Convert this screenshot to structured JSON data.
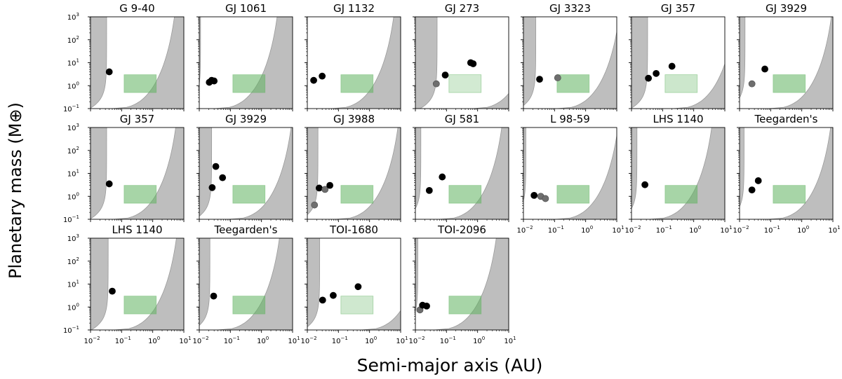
{
  "figure": {
    "ylabel": "Planetary mass (M⊕)",
    "xlabel": "Semi-major axis (AU)"
  },
  "colors": {
    "excluded_region": "#bebebe",
    "excluded_edge": "#9a9a9a",
    "habitable_zone": "#5fb35f",
    "planet_detected": "#000000",
    "planet_candidate": "#6e6e6e"
  },
  "chart_data": {
    "type": "scatter",
    "x_scale": "log",
    "y_scale": "log",
    "xlim": [
      0.01,
      10
    ],
    "ylim": [
      0.1,
      1000
    ],
    "x_tick_labels": [
      "10⁻²",
      "10⁻¹",
      "10⁰",
      "10¹"
    ],
    "y_tick_labels": [
      "10⁻¹",
      "10⁰",
      "10¹",
      "10²",
      "10³"
    ],
    "panels": [
      {
        "title": "G 9-40",
        "hz": [
          0.12,
          1.3
        ],
        "hz_opacity": 0.55,
        "excl_inner": 0.033,
        "excl_outer": 0.05,
        "points": [
          {
            "x": 0.04,
            "y": 4.0,
            "s": "d"
          }
        ]
      },
      {
        "title": "GJ 1061",
        "hz": [
          0.12,
          1.3
        ],
        "hz_opacity": 0.55,
        "excl_inner": 0.011,
        "excl_outer": 0.032,
        "points": [
          {
            "x": 0.021,
            "y": 1.4,
            "s": "d"
          },
          {
            "x": 0.025,
            "y": 1.7,
            "s": "d"
          },
          {
            "x": 0.03,
            "y": 1.6,
            "s": "d"
          }
        ]
      },
      {
        "title": "GJ 1132",
        "hz": [
          0.12,
          1.3
        ],
        "hz_opacity": 0.55,
        "excl_inner": 0.009,
        "excl_outer": 0.06,
        "points": [
          {
            "x": 0.016,
            "y": 1.7,
            "s": "d"
          },
          {
            "x": 0.03,
            "y": 2.6,
            "s": "d"
          }
        ]
      },
      {
        "title": "GJ 273",
        "hz": [
          0.12,
          1.3
        ],
        "hz_opacity": 0.28,
        "excl_inner": 0.05,
        "excl_outer": 0.7,
        "points": [
          {
            "x": 0.047,
            "y": 1.2,
            "s": "c"
          },
          {
            "x": 0.091,
            "y": 2.9,
            "s": "d"
          },
          {
            "x": 0.6,
            "y": 10.0,
            "s": "d"
          },
          {
            "x": 0.72,
            "y": 9.0,
            "s": "d"
          }
        ]
      },
      {
        "title": "GJ 3323",
        "hz": [
          0.12,
          1.3
        ],
        "hz_opacity": 0.55,
        "excl_inner": 0.025,
        "excl_outer": 0.12,
        "points": [
          {
            "x": 0.033,
            "y": 1.9,
            "s": "d"
          },
          {
            "x": 0.126,
            "y": 2.2,
            "s": "c"
          }
        ]
      },
      {
        "title": "GJ 357",
        "hz": [
          0.12,
          1.3
        ],
        "hz_opacity": 0.32,
        "excl_inner": 0.033,
        "excl_outer": 0.22,
        "points": [
          {
            "x": 0.035,
            "y": 2.1,
            "s": "d"
          },
          {
            "x": 0.062,
            "y": 3.4,
            "s": "d"
          },
          {
            "x": 0.2,
            "y": 7.0,
            "s": "d"
          }
        ]
      },
      {
        "title": "GJ 3929",
        "hz": [
          0.12,
          1.3
        ],
        "hz_opacity": 0.55,
        "excl_inner": 0.015,
        "excl_outer": 0.09,
        "points": [
          {
            "x": 0.025,
            "y": 1.2,
            "s": "c"
          },
          {
            "x": 0.065,
            "y": 5.3,
            "s": "d"
          }
        ]
      },
      {
        "title": "GJ 357",
        "hz": [
          0.12,
          1.3
        ],
        "hz_opacity": 0.55,
        "excl_inner": 0.033,
        "excl_outer": 0.055,
        "points": [
          {
            "x": 0.04,
            "y": 3.5,
            "s": "d"
          }
        ]
      },
      {
        "title": "GJ 3929",
        "hz": [
          0.12,
          1.3
        ],
        "hz_opacity": 0.55,
        "excl_inner": 0.025,
        "excl_outer": 0.09,
        "points": [
          {
            "x": 0.026,
            "y": 2.4,
            "s": "d"
          },
          {
            "x": 0.034,
            "y": 20.0,
            "s": "d"
          },
          {
            "x": 0.056,
            "y": 6.5,
            "s": "d"
          }
        ]
      },
      {
        "title": "GJ 3988",
        "hz": [
          0.12,
          1.3
        ],
        "hz_opacity": 0.55,
        "excl_inner": 0.022,
        "excl_outer": 0.082,
        "points": [
          {
            "x": 0.017,
            "y": 0.42,
            "s": "c"
          },
          {
            "x": 0.024,
            "y": 2.3,
            "s": "d"
          },
          {
            "x": 0.037,
            "y": 2.0,
            "s": "c"
          },
          {
            "x": 0.053,
            "y": 3.0,
            "s": "d"
          }
        ]
      },
      {
        "title": "GJ 581",
        "hz": [
          0.12,
          1.3
        ],
        "hz_opacity": 0.55,
        "excl_inner": 0.015,
        "excl_outer": 0.06,
        "points": [
          {
            "x": 0.028,
            "y": 1.8,
            "s": "d"
          },
          {
            "x": 0.073,
            "y": 7.0,
            "s": "d"
          }
        ]
      },
      {
        "title": "L 98-59",
        "hz": [
          0.12,
          1.3
        ],
        "hz_opacity": 0.55,
        "excl_inner": 0.012,
        "excl_outer": 0.11,
        "points": [
          {
            "x": 0.022,
            "y": 1.1,
            "s": "d"
          },
          {
            "x": 0.036,
            "y": 1.0,
            "s": "c"
          },
          {
            "x": 0.051,
            "y": 0.8,
            "s": "c"
          }
        ]
      },
      {
        "title": "LHS 1140",
        "hz": [
          0.12,
          1.3
        ],
        "hz_opacity": 0.55,
        "excl_inner": 0.015,
        "excl_outer": 0.038,
        "points": [
          {
            "x": 0.027,
            "y": 3.2,
            "s": "d"
          }
        ]
      },
      {
        "title": "Teegarden's",
        "hz": [
          0.12,
          1.3
        ],
        "hz_opacity": 0.55,
        "excl_inner": 0.014,
        "excl_outer": 0.085,
        "points": [
          {
            "x": 0.025,
            "y": 1.9,
            "s": "d"
          },
          {
            "x": 0.04,
            "y": 4.8,
            "s": "d"
          }
        ]
      },
      {
        "title": "LHS 1140",
        "hz": [
          0.12,
          1.3
        ],
        "hz_opacity": 0.55,
        "excl_inner": 0.037,
        "excl_outer": 0.058,
        "points": [
          {
            "x": 0.05,
            "y": 4.9,
            "s": "d"
          }
        ]
      },
      {
        "title": "Teegarden's",
        "hz": [
          0.12,
          1.3
        ],
        "hz_opacity": 0.55,
        "excl_inner": 0.022,
        "excl_outer": 0.038,
        "points": [
          {
            "x": 0.029,
            "y": 3.0,
            "s": "d"
          }
        ]
      },
      {
        "title": "TOI-1680",
        "hz": [
          0.12,
          1.3
        ],
        "hz_opacity": 0.3,
        "excl_inner": 0.025,
        "excl_outer": 0.55,
        "points": [
          {
            "x": 0.031,
            "y": 2.0,
            "s": "d"
          },
          {
            "x": 0.068,
            "y": 3.2,
            "s": "d"
          },
          {
            "x": 0.43,
            "y": 7.7,
            "s": "d"
          }
        ]
      },
      {
        "title": "TOI-2096",
        "hz": [
          0.12,
          1.3
        ],
        "hz_opacity": 0.55,
        "excl_inner": 0.012,
        "excl_outer": 0.04,
        "points": [
          {
            "x": 0.014,
            "y": 0.75,
            "s": "c"
          },
          {
            "x": 0.017,
            "y": 1.2,
            "s": "d"
          },
          {
            "x": 0.023,
            "y": 1.1,
            "s": "d"
          }
        ]
      }
    ]
  }
}
